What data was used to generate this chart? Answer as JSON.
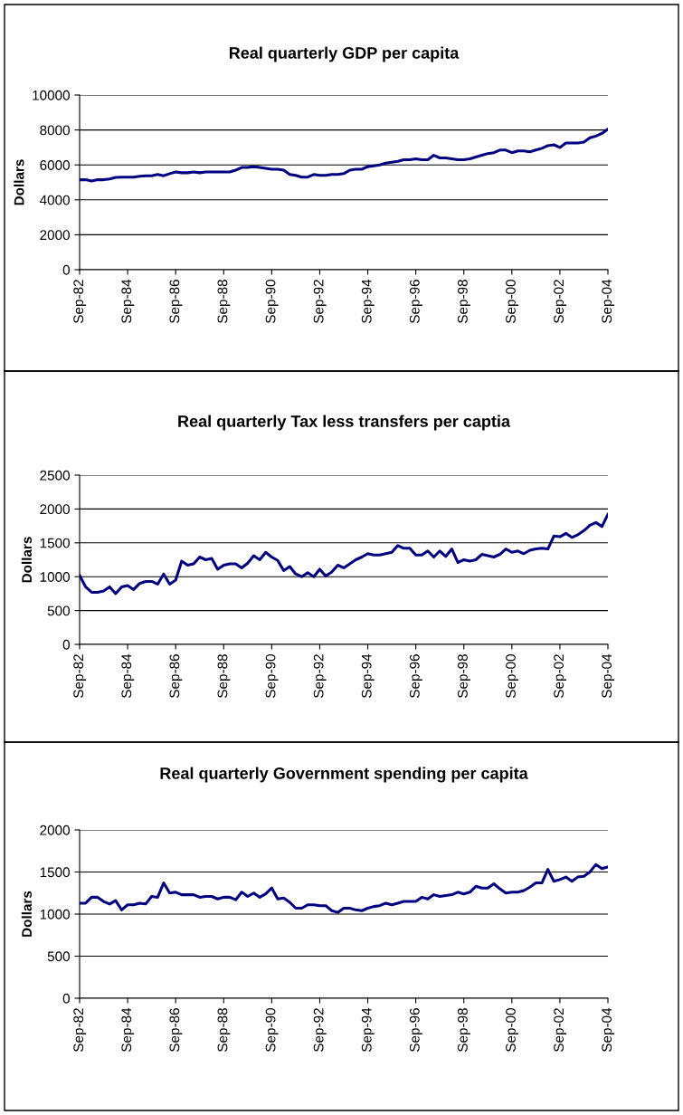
{
  "chart_data": [
    {
      "type": "line",
      "title": "Real quarterly GDP per capita",
      "ylabel": "Dollars",
      "categories": [
        "Sep-82",
        null,
        null,
        null,
        null,
        null,
        null,
        null,
        "Sep-84",
        null,
        null,
        null,
        null,
        null,
        null,
        null,
        "Sep-86",
        null,
        null,
        null,
        null,
        null,
        null,
        null,
        "Sep-88",
        null,
        null,
        null,
        null,
        null,
        null,
        null,
        "Sep-90",
        null,
        null,
        null,
        null,
        null,
        null,
        null,
        "Sep-92",
        null,
        null,
        null,
        null,
        null,
        null,
        null,
        "Sep-94",
        null,
        null,
        null,
        null,
        null,
        null,
        null,
        "Sep-96",
        null,
        null,
        null,
        null,
        null,
        null,
        null,
        "Sep-98",
        null,
        null,
        null,
        null,
        null,
        null,
        null,
        "Sep-00",
        null,
        null,
        null,
        null,
        null,
        null,
        null,
        "Sep-02",
        null,
        null,
        null,
        null,
        null,
        null,
        null,
        "Sep-04"
      ],
      "series": [
        {
          "color": "#000080",
          "values": [
            5150,
            5150,
            5080,
            5150,
            5150,
            5200,
            5280,
            5300,
            5300,
            5300,
            5350,
            5380,
            5380,
            5450,
            5380,
            5500,
            5600,
            5550,
            5550,
            5600,
            5550,
            5600,
            5600,
            5600,
            5600,
            5600,
            5700,
            5850,
            5850,
            5900,
            5850,
            5800,
            5750,
            5750,
            5700,
            5450,
            5400,
            5300,
            5300,
            5450,
            5400,
            5400,
            5450,
            5450,
            5500,
            5700,
            5750,
            5750,
            5900,
            5950,
            6000,
            6100,
            6150,
            6200,
            6300,
            6300,
            6350,
            6300,
            6300,
            6550,
            6400,
            6400,
            6350,
            6300,
            6300,
            6350,
            6450,
            6550,
            6650,
            6700,
            6850,
            6850,
            6700,
            6800,
            6800,
            6750,
            6850,
            6950,
            7100,
            7150,
            7000,
            7250,
            7250,
            7250,
            7300,
            7550,
            7650,
            7800,
            8050
          ]
        }
      ],
      "ylim": [
        0,
        10000
      ],
      "yticks": [
        0,
        2000,
        4000,
        6000,
        8000,
        10000
      ],
      "grid": "y",
      "marker": "none",
      "line_style": "solid"
    },
    {
      "type": "line",
      "title": "Real quarterly Tax less transfers per captia",
      "ylabel": "Dollars",
      "categories": [
        "Sep-82",
        null,
        null,
        null,
        null,
        null,
        null,
        null,
        "Sep-84",
        null,
        null,
        null,
        null,
        null,
        null,
        null,
        "Sep-86",
        null,
        null,
        null,
        null,
        null,
        null,
        null,
        "Sep-88",
        null,
        null,
        null,
        null,
        null,
        null,
        null,
        "Sep-90",
        null,
        null,
        null,
        null,
        null,
        null,
        null,
        "Sep-92",
        null,
        null,
        null,
        null,
        null,
        null,
        null,
        "Sep-94",
        null,
        null,
        null,
        null,
        null,
        null,
        null,
        "Sep-96",
        null,
        null,
        null,
        null,
        null,
        null,
        null,
        "Sep-98",
        null,
        null,
        null,
        null,
        null,
        null,
        null,
        "Sep-00",
        null,
        null,
        null,
        null,
        null,
        null,
        null,
        "Sep-02",
        null,
        null,
        null,
        null,
        null,
        null,
        null,
        "Sep-04"
      ],
      "series": [
        {
          "color": "#000080",
          "values": [
            1020,
            850,
            770,
            770,
            790,
            850,
            750,
            850,
            870,
            810,
            900,
            930,
            930,
            890,
            1040,
            890,
            950,
            1230,
            1170,
            1190,
            1290,
            1250,
            1270,
            1110,
            1170,
            1190,
            1190,
            1130,
            1200,
            1310,
            1250,
            1360,
            1290,
            1240,
            1090,
            1150,
            1040,
            1000,
            1060,
            1000,
            1110,
            1010,
            1070,
            1170,
            1130,
            1190,
            1250,
            1290,
            1340,
            1320,
            1320,
            1340,
            1360,
            1460,
            1420,
            1420,
            1320,
            1320,
            1380,
            1290,
            1380,
            1300,
            1410,
            1210,
            1250,
            1230,
            1250,
            1330,
            1310,
            1290,
            1330,
            1410,
            1360,
            1380,
            1340,
            1390,
            1410,
            1420,
            1410,
            1600,
            1590,
            1640,
            1580,
            1620,
            1680,
            1760,
            1800,
            1740,
            1920
          ]
        }
      ],
      "ylim": [
        0,
        2500
      ],
      "yticks": [
        0,
        500,
        1000,
        1500,
        2000,
        2500
      ],
      "grid": "y",
      "marker": "none",
      "line_style": "solid"
    },
    {
      "type": "line",
      "title": "Real quarterly Government spending per capita",
      "ylabel": "Dollars",
      "categories": [
        "Sep-82",
        null,
        null,
        null,
        null,
        null,
        null,
        null,
        "Sep-84",
        null,
        null,
        null,
        null,
        null,
        null,
        null,
        "Sep-86",
        null,
        null,
        null,
        null,
        null,
        null,
        null,
        "Sep-88",
        null,
        null,
        null,
        null,
        null,
        null,
        null,
        "Sep-90",
        null,
        null,
        null,
        null,
        null,
        null,
        null,
        "Sep-92",
        null,
        null,
        null,
        null,
        null,
        null,
        null,
        "Sep-94",
        null,
        null,
        null,
        null,
        null,
        null,
        null,
        "Sep-96",
        null,
        null,
        null,
        null,
        null,
        null,
        null,
        "Sep-98",
        null,
        null,
        null,
        null,
        null,
        null,
        null,
        "Sep-00",
        null,
        null,
        null,
        null,
        null,
        null,
        null,
        "Sep-02",
        null,
        null,
        null,
        null,
        null,
        null,
        null,
        "Sep-04"
      ],
      "series": [
        {
          "color": "#000080",
          "values": [
            1130,
            1130,
            1200,
            1200,
            1150,
            1120,
            1160,
            1050,
            1110,
            1110,
            1130,
            1120,
            1210,
            1200,
            1370,
            1250,
            1260,
            1230,
            1230,
            1230,
            1200,
            1210,
            1210,
            1180,
            1200,
            1200,
            1170,
            1260,
            1210,
            1250,
            1200,
            1240,
            1310,
            1180,
            1190,
            1140,
            1070,
            1070,
            1110,
            1110,
            1100,
            1100,
            1040,
            1020,
            1070,
            1070,
            1050,
            1040,
            1070,
            1090,
            1100,
            1130,
            1110,
            1130,
            1150,
            1150,
            1150,
            1200,
            1180,
            1230,
            1210,
            1220,
            1230,
            1260,
            1240,
            1260,
            1330,
            1310,
            1310,
            1360,
            1300,
            1250,
            1260,
            1260,
            1280,
            1320,
            1370,
            1370,
            1530,
            1390,
            1410,
            1440,
            1390,
            1440,
            1450,
            1500,
            1590,
            1540,
            1560
          ]
        }
      ],
      "ylim": [
        0,
        2000
      ],
      "yticks": [
        0,
        500,
        1000,
        1500,
        2000
      ],
      "grid": "y",
      "marker": "none",
      "line_style": "solid"
    }
  ]
}
